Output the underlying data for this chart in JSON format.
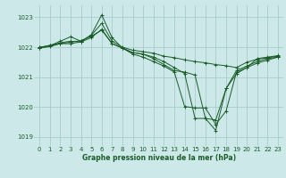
{
  "bg_color": "#cce8e8",
  "grid_color": "#aacccc",
  "line_color": "#1a5c28",
  "xlabel": "Graphe pression niveau de la mer (hPa)",
  "ylim": [
    1018.7,
    1023.4
  ],
  "xlim": [
    -0.5,
    23.5
  ],
  "yticks": [
    1019,
    1020,
    1021,
    1022,
    1023
  ],
  "xticks": [
    0,
    1,
    2,
    3,
    4,
    5,
    6,
    7,
    8,
    9,
    10,
    11,
    12,
    13,
    14,
    15,
    16,
    17,
    18,
    19,
    20,
    21,
    22,
    23
  ],
  "series": [
    [
      1022.0,
      1022.05,
      1022.2,
      1022.35,
      1022.2,
      1022.4,
      1022.8,
      1022.2,
      1022.0,
      1021.9,
      1021.85,
      1021.8,
      1021.7,
      1021.65,
      1021.58,
      1021.52,
      1021.48,
      1021.42,
      1021.38,
      1021.32,
      1021.5,
      1021.6,
      1021.65,
      1021.7
    ],
    [
      1022.0,
      1022.05,
      1022.15,
      1022.2,
      1022.18,
      1022.32,
      1022.6,
      1022.12,
      1021.97,
      1021.82,
      1021.77,
      1021.67,
      1021.52,
      1021.32,
      1021.12,
      1019.62,
      1019.62,
      1019.22,
      1020.62,
      1021.12,
      1021.32,
      1021.47,
      1021.57,
      1021.67
    ],
    [
      1021.97,
      1022.02,
      1022.12,
      1022.12,
      1022.18,
      1022.42,
      1023.08,
      1022.32,
      1021.97,
      1021.77,
      1021.67,
      1021.52,
      1021.37,
      1021.17,
      1020.02,
      1019.97,
      1019.97,
      1019.42,
      1019.87,
      1021.17,
      1021.32,
      1021.62,
      1021.67,
      1021.72
    ],
    [
      1021.97,
      1022.07,
      1022.12,
      1022.17,
      1022.22,
      1022.37,
      1022.57,
      1022.12,
      1021.97,
      1021.82,
      1021.77,
      1021.62,
      1021.42,
      1021.22,
      1021.17,
      1021.07,
      1019.62,
      1019.57,
      1020.62,
      1021.22,
      1021.37,
      1021.52,
      1021.62,
      1021.67
    ]
  ]
}
